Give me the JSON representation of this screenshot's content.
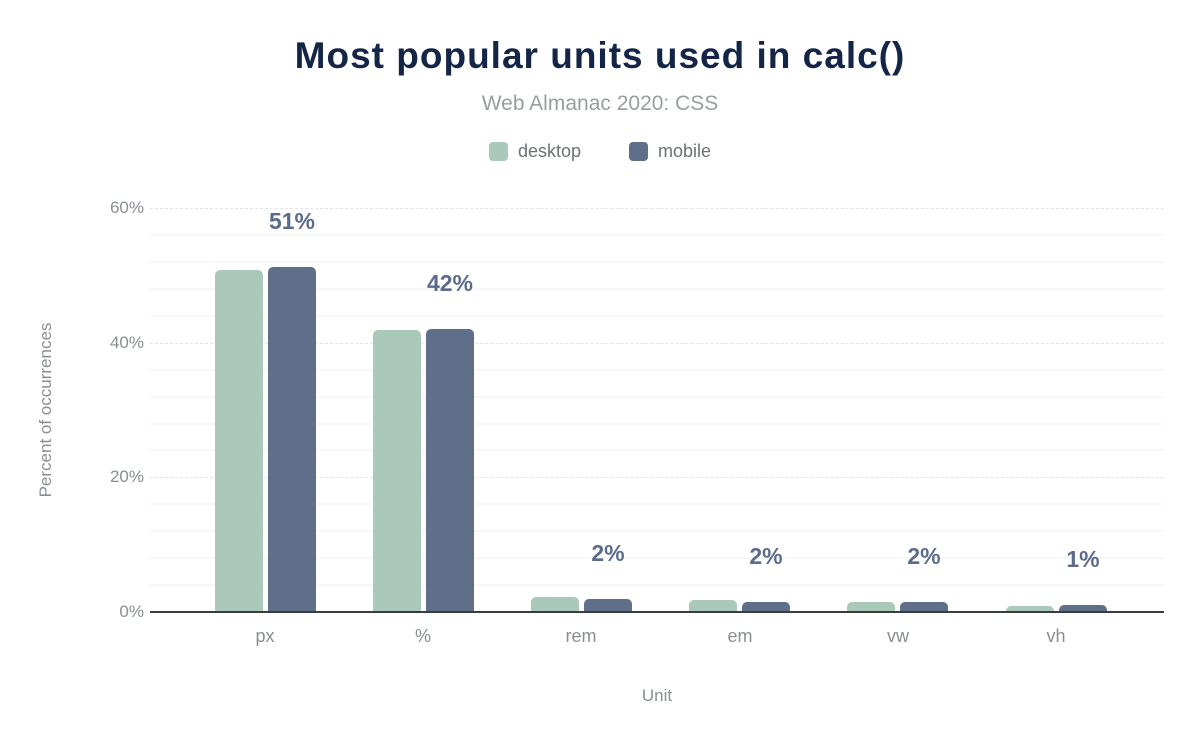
{
  "chart_data": {
    "type": "bar",
    "title": "Most popular units used in calc()",
    "subtitle": "Web Almanac 2020: CSS",
    "categories": [
      "px",
      "%",
      "rem",
      "em",
      "vw",
      "vh"
    ],
    "series": [
      {
        "name": "desktop",
        "color": "#aac9ba",
        "values": [
          50.8,
          41.9,
          2.3,
          1.8,
          1.5,
          0.9
        ]
      },
      {
        "name": "mobile",
        "color": "#5f6e89",
        "values": [
          51.2,
          42.0,
          2.0,
          1.5,
          1.5,
          1.1
        ]
      }
    ],
    "data_labels": [
      "51%",
      "42%",
      "2%",
      "2%",
      "2%",
      "1%"
    ],
    "data_label_color": "#5a6b8d",
    "xlabel": "Unit",
    "ylabel": "Percent of occurrences",
    "ylim": [
      0,
      60
    ],
    "ytick_values": [
      0,
      20,
      40,
      60
    ],
    "ytick_labels": [
      "0%",
      "20%",
      "40%",
      "60%"
    ],
    "grid": {
      "major_interval": 20,
      "minor_interval": 4,
      "orientation": "horizontal"
    },
    "legend_position": "top",
    "axis_line_color": "#3a3c40",
    "title_color": "#142647",
    "subtitle_color": "#999da1",
    "tick_label_color": "#8a8e93"
  }
}
